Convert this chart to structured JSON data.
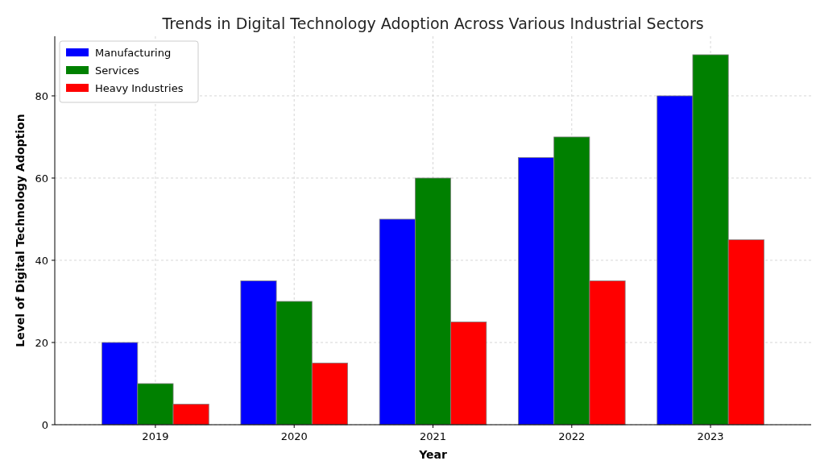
{
  "chart_data": {
    "type": "bar",
    "title": "Trends in Digital Technology Adoption Across Various Industrial Sectors",
    "xlabel": "Year",
    "ylabel": "Level of Digital Technology Adoption",
    "categories": [
      "2019",
      "2020",
      "2021",
      "2022",
      "2023"
    ],
    "series": [
      {
        "name": "Manufacturing",
        "color": "#0000ff",
        "values": [
          20,
          35,
          50,
          65,
          80
        ]
      },
      {
        "name": "Services",
        "color": "#008000",
        "values": [
          10,
          30,
          60,
          70,
          90
        ]
      },
      {
        "name": "Heavy Industries",
        "color": "#ff0000",
        "values": [
          5,
          15,
          25,
          35,
          45
        ]
      }
    ],
    "ylim": [
      0,
      94.5
    ],
    "yticks": [
      0,
      20,
      40,
      60,
      80
    ],
    "grid": true,
    "legend": "top left"
  }
}
